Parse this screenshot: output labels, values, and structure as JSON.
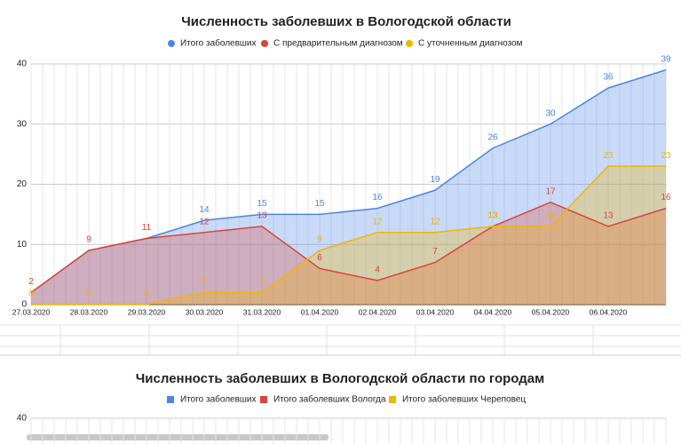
{
  "chart_data": [
    {
      "type": "area",
      "title": "Численность заболевших в Вологодской области",
      "categories": [
        "27.03.2020",
        "28.03.2020",
        "29.03.2020",
        "30.03.2020",
        "31.03.2020",
        "01.04.2020",
        "02.04.2020",
        "03.04.2020",
        "04.04.2020",
        "05.04.2020",
        "06.04.2020",
        null
      ],
      "series": [
        {
          "name": "Итого заболевших",
          "color": "#4a86e8",
          "values": [
            2,
            9,
            11,
            14,
            15,
            15,
            16,
            19,
            26,
            30,
            36,
            39
          ]
        },
        {
          "name": "С предварительным диагнозом",
          "color": "#db4437",
          "values": [
            2,
            9,
            11,
            12,
            13,
            6,
            4,
            7,
            13,
            17,
            13,
            16
          ]
        },
        {
          "name": "С уточненным диагнозом",
          "color": "#f4b400",
          "values": [
            0,
            0,
            0,
            2,
            2,
            9,
            12,
            12,
            13,
            13,
            23,
            23
          ]
        }
      ],
      "ylim": [
        0,
        40
      ],
      "yticks": [
        0,
        10,
        20,
        30,
        40
      ],
      "grid": true,
      "legend": "top"
    },
    {
      "type": "area",
      "title": "Численность заболевших в Вологодской области по городам",
      "series": [
        {
          "name": "Итого заболевших",
          "color": "#4a86e8"
        },
        {
          "name": "Итого заболевших Вологда",
          "color": "#db4437"
        },
        {
          "name": "Итого заболевших Череповец",
          "color": "#f4b400"
        }
      ],
      "yticks": [
        40
      ],
      "legend": "top"
    }
  ]
}
